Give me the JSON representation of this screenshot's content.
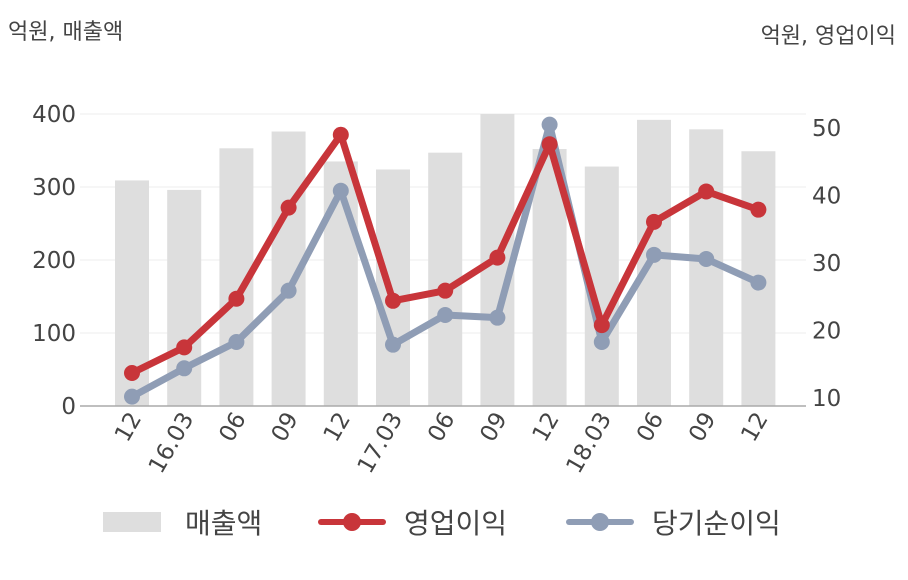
{
  "chart_data": {
    "type": "bar",
    "categories": [
      "12",
      "16.03",
      "06",
      "09",
      "12",
      "17.03",
      "06",
      "09",
      "12",
      "18.03",
      "06",
      "09",
      "12"
    ],
    "left_axis": {
      "unit_label": "억원, 매출액",
      "ylim": [
        0,
        400
      ],
      "ticks": [
        "0",
        "100",
        "200",
        "300",
        "400"
      ]
    },
    "right_axis": {
      "unit_label": "억원, 영업이익",
      "ylim": [
        10,
        50
      ],
      "ticks": [
        "10",
        "20",
        "30",
        "40",
        "50"
      ]
    },
    "series": [
      {
        "name": "매출액",
        "type": "bar",
        "axis": "left",
        "color": "#dedede",
        "values": [
          309,
          296,
          353,
          376,
          335,
          324,
          347,
          400,
          352,
          328,
          392,
          379,
          349
        ]
      },
      {
        "name": "영업이익",
        "type": "line",
        "axis": "right",
        "color": "#c8353a",
        "values": [
          13.7,
          17.5,
          24.7,
          38.2,
          49.0,
          24.4,
          25.9,
          30.8,
          47.6,
          20.8,
          36.1,
          40.6,
          37.9
        ]
      },
      {
        "name": "당기순이익",
        "type": "line",
        "axis": "right",
        "color": "#8f9db5",
        "values": [
          10.2,
          14.4,
          18.3,
          25.9,
          40.7,
          17.9,
          22.3,
          21.9,
          50.5,
          18.3,
          31.2,
          30.6,
          27.1
        ]
      }
    ],
    "grid": true,
    "legend_position": "bottom"
  }
}
